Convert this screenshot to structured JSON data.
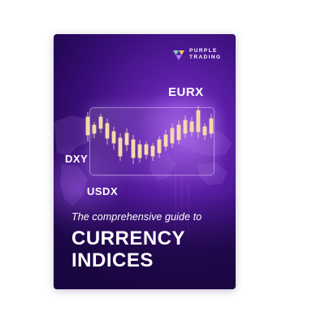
{
  "brand": {
    "line1": "PURPLE",
    "line2": "TRADING"
  },
  "tickers": {
    "eurx": "EURX",
    "dxy": "DXY",
    "usdx": "USDX"
  },
  "cover": {
    "subtitle": "The comprehensive guide to",
    "headline_line1": "CURRENCY",
    "headline_line2": "INDICES"
  },
  "colors": {
    "background_dark": "#240857",
    "background_mid": "#5a1ea6",
    "glow": "#8a3fd6",
    "candle": "#f5d9a8",
    "text": "#ffffff"
  },
  "icons": {
    "logo": "purple-trading-logo-icon"
  }
}
